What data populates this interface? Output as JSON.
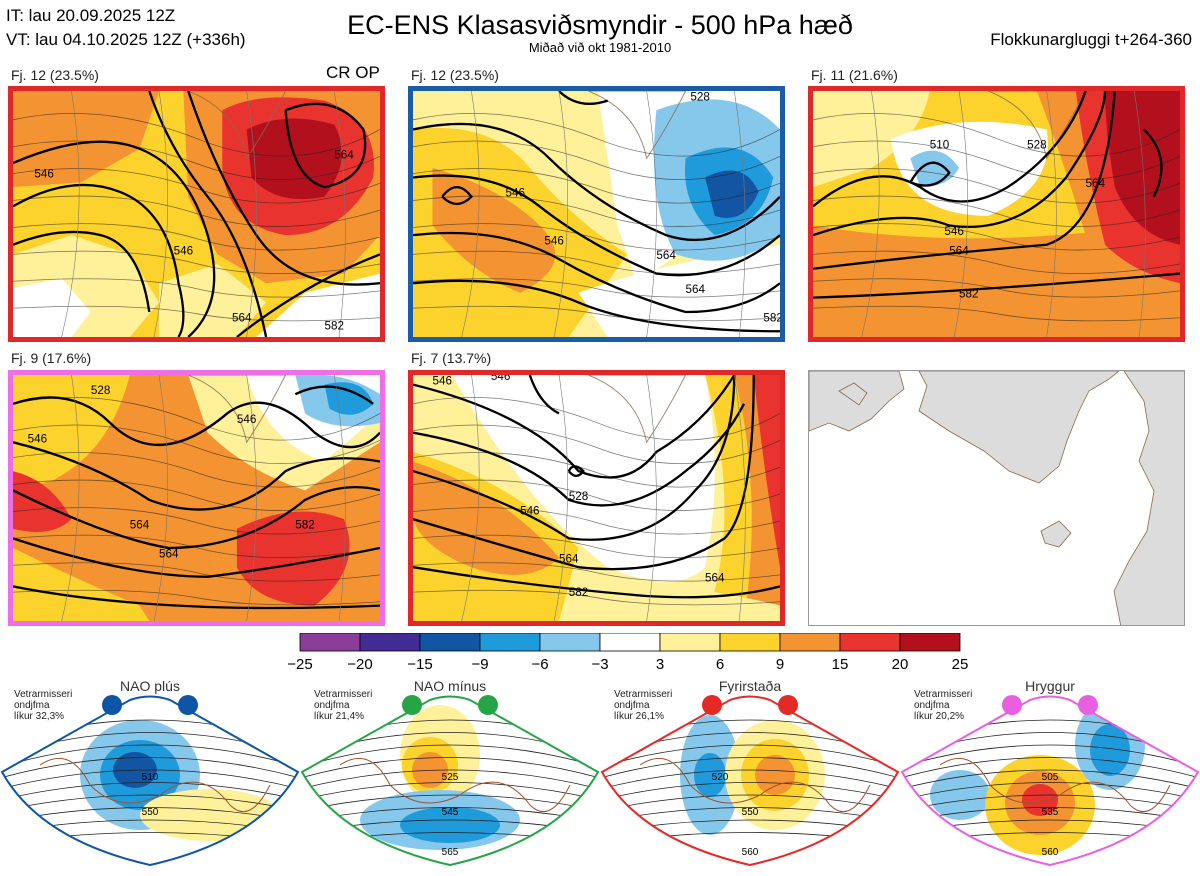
{
  "header": {
    "it": "IT: lau 20.09.2025 12Z",
    "vt": "VT: lau 04.10.2025 12Z  (+336h)",
    "title": "EC-ENS Klasasviðsmyndir - 500 hPa hæð",
    "subtitle": "Miðað við okt 1981-2010",
    "window": "Flokkunargluggi t+264-360"
  },
  "panels": [
    {
      "label": "Fj. 12 (23.5%)",
      "border": "#e02828",
      "badge": "CR OP",
      "contours": [
        "546",
        "546",
        "564",
        "564",
        "582"
      ]
    },
    {
      "label": "Fj. 12 (23.5%)",
      "border": "#1a5ca8",
      "contours": [
        "528",
        "546",
        "546",
        "564",
        "564",
        "582"
      ]
    },
    {
      "label": "Fj. 11 (21.6%)",
      "border": "#e02828",
      "contours": [
        "510",
        "528",
        "546",
        "564",
        "564",
        "582"
      ]
    },
    {
      "label": "Fj. 9 (17.6%)",
      "border": "#ee6ee6",
      "contours": [
        "528",
        "546",
        "546",
        "564",
        "564",
        "582"
      ]
    },
    {
      "label": "Fj. 7 (13.7%)",
      "border": "#e02828",
      "contours": [
        "546",
        "546",
        "528",
        "546",
        "564",
        "564",
        "582"
      ]
    }
  ],
  "colorbar": {
    "colors": [
      "#8a3d99",
      "#432b96",
      "#1256a3",
      "#1f9bdc",
      "#86c8ec",
      "#ffffff",
      "#fff09a",
      "#fcd22c",
      "#f49331",
      "#e8332e",
      "#b3101e"
    ],
    "ticks": [
      "−25",
      "−20",
      "−15",
      "−9",
      "−6",
      "−3",
      "3",
      "6",
      "9",
      "15",
      "20",
      "25"
    ]
  },
  "regimes": [
    {
      "title": "NAO plús",
      "info": [
        "Vetrarmisseri",
        "ondjfma",
        "líkur 32,3%"
      ],
      "color": "#0e55a7",
      "labels": [
        "510",
        "550"
      ]
    },
    {
      "title": "NAO mínus",
      "info": [
        "Vetrarmisseri",
        "ondjfma",
        "líkur 21,4%"
      ],
      "color": "#26a547",
      "labels": [
        "525",
        "545",
        "565"
      ]
    },
    {
      "title": "Fyrirstaða",
      "info": [
        "Vetrarmisseri",
        "ondjfma",
        "líkur 26,1%"
      ],
      "color": "#e42a26",
      "labels": [
        "520",
        "550",
        "560"
      ]
    },
    {
      "title": "Hryggur",
      "info": [
        "Vetrarmisseri",
        "ondjfma",
        "líkur 20,2%"
      ],
      "color": "#e860e0",
      "labels": [
        "505",
        "535",
        "560"
      ]
    }
  ]
}
